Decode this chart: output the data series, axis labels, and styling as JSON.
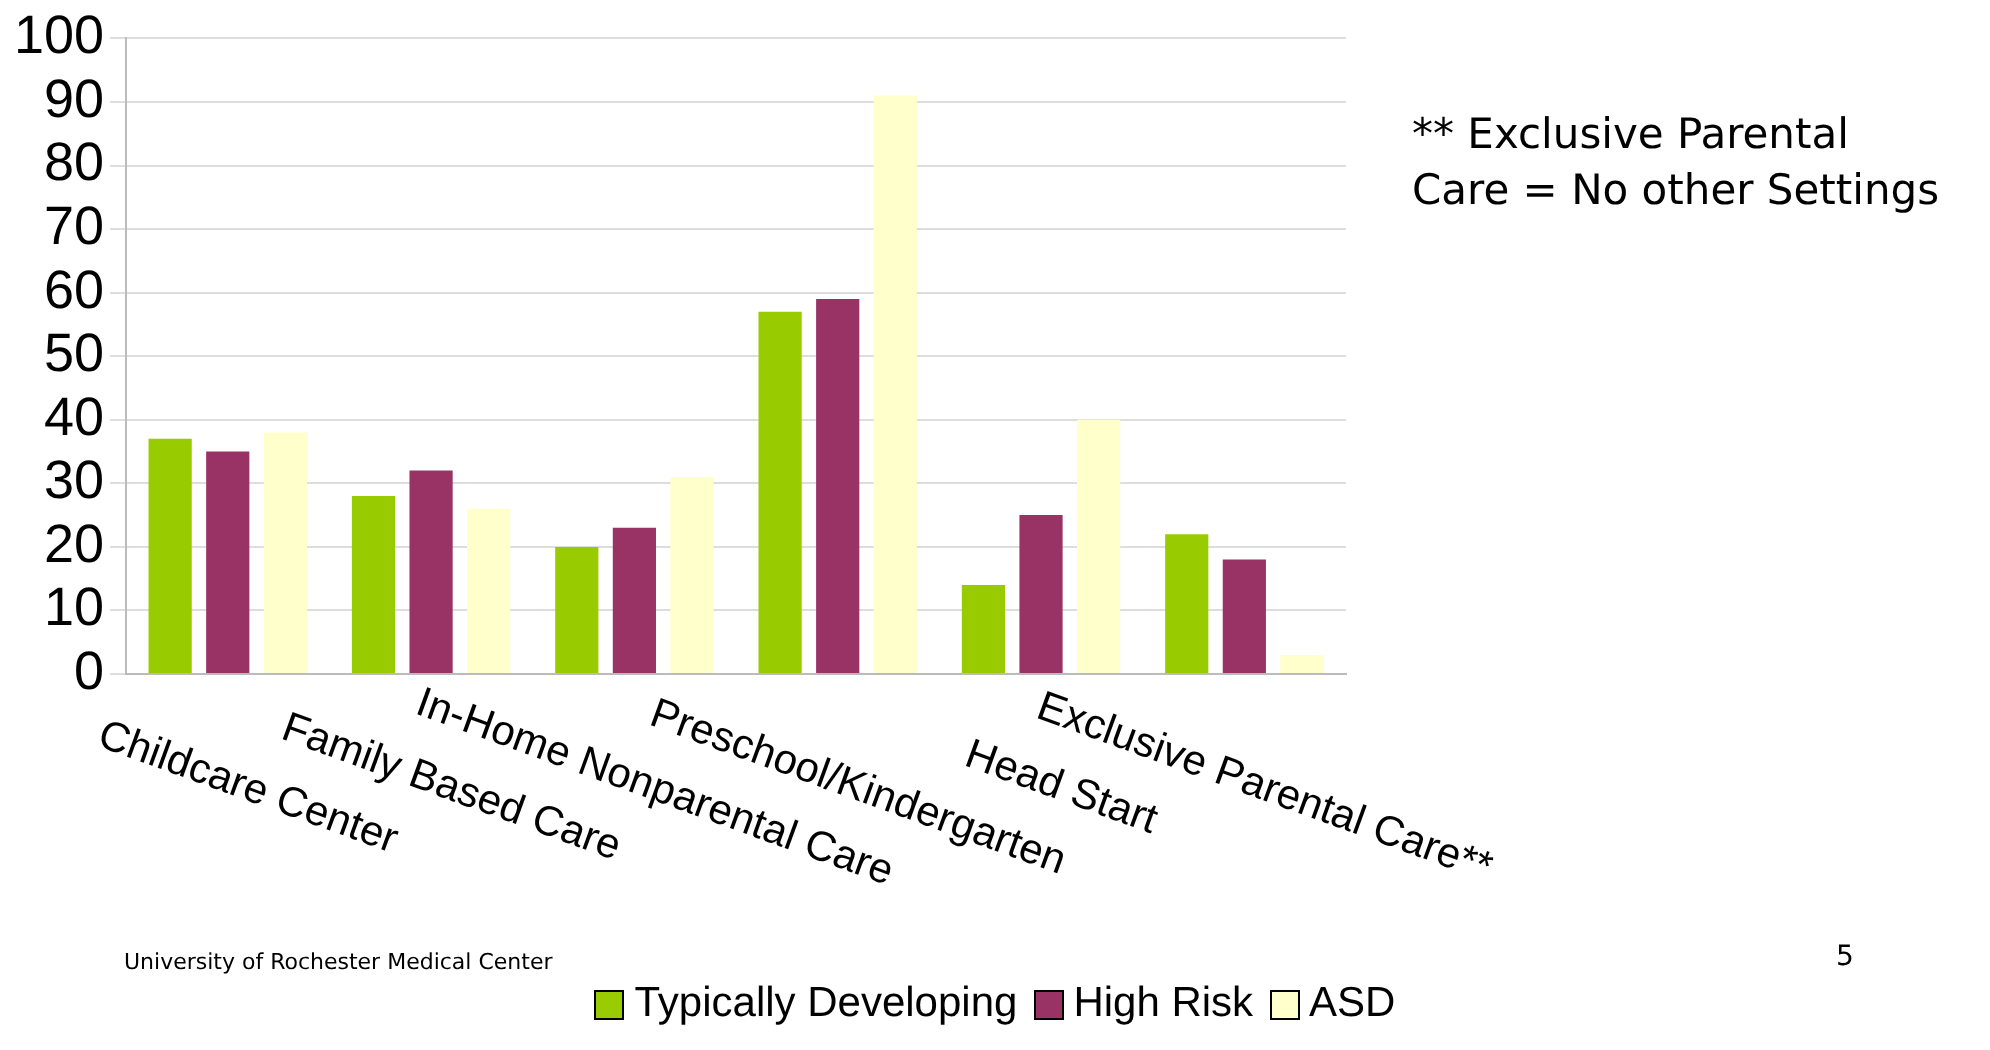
{
  "chart_data": {
    "type": "bar",
    "categories": [
      "Childcare Center",
      "Family Based Care",
      "In-Home Nonparental Care",
      "Preschool/Kindergarten",
      "Head Start",
      "Exclusive Parental Care**"
    ],
    "series": [
      {
        "name": "Typically Developing",
        "color": "#99cc00",
        "values": [
          37,
          28,
          20,
          57,
          14,
          22
        ]
      },
      {
        "name": "High Risk",
        "color": "#993366",
        "values": [
          35,
          32,
          23,
          59,
          25,
          18
        ]
      },
      {
        "name": "ASD",
        "color": "#ffffcc",
        "values": [
          38,
          26,
          31,
          91,
          40,
          3
        ]
      }
    ],
    "ylim": [
      0,
      100
    ],
    "yticks": [
      0,
      10,
      20,
      30,
      40,
      50,
      60,
      70,
      80,
      90,
      100
    ],
    "grid": "y",
    "legend": "bottom",
    "annotations": [
      "** Exclusive Parental Care = No other Settings",
      "University of Rochester Medical Center",
      "5"
    ]
  }
}
